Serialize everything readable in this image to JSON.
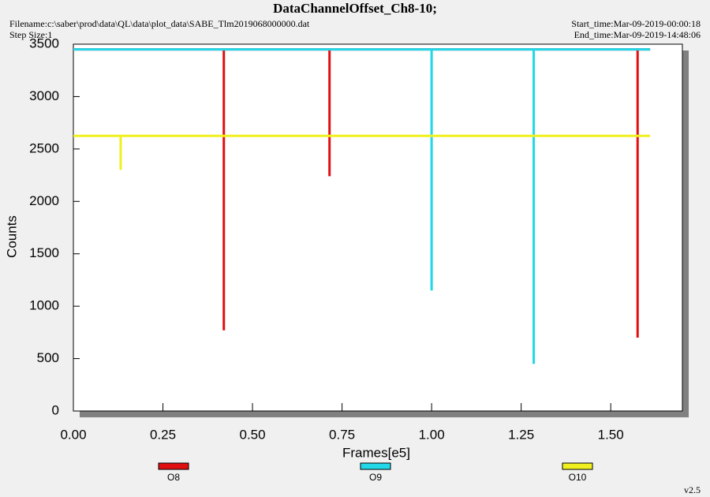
{
  "chart_data": {
    "type": "line",
    "title": "DataChannelOffset_Ch8-10;",
    "filename": "Filename:c:\\saber\\prod\\data\\QL\\data\\plot_data\\SABE_Tlm2019068000000.dat",
    "step_size": "Step Size:1",
    "start_time": "Start_time:Mar-09-2019-00:00:18",
    "end_time": "End_time:Mar-09-2019-14:48:06",
    "version": "v2.5",
    "xlabel": "Frames[e5]",
    "ylabel": "Counts",
    "xlim": [
      0,
      1.7
    ],
    "ylim": [
      0,
      3500
    ],
    "xticks": [
      {
        "value": 0,
        "label": "0.00"
      },
      {
        "value": 0.25,
        "label": "0.25"
      },
      {
        "value": 0.5,
        "label": "0.50"
      },
      {
        "value": 0.75,
        "label": "0.75"
      },
      {
        "value": 1,
        "label": "1.00"
      },
      {
        "value": 1.25,
        "label": "1.25"
      },
      {
        "value": 1.5,
        "label": "1.50"
      }
    ],
    "yticks": [
      0,
      500,
      1000,
      1500,
      2000,
      2500,
      3000,
      3500
    ],
    "grid": false,
    "series": [
      {
        "name": "O8",
        "color": "#e01010",
        "x": [
          0,
          0.42,
          0.42,
          0.42,
          0.715,
          0.715,
          0.715,
          1.575,
          1.575,
          1.575,
          1.61
        ],
        "values": [
          3450,
          3450,
          770,
          3450,
          3450,
          2240,
          3450,
          3450,
          700,
          3450,
          3450
        ]
      },
      {
        "name": "O9",
        "color": "#20d8e8",
        "x": [
          0,
          1.0,
          1.0,
          1.0,
          1.285,
          1.285,
          1.285,
          1.61
        ],
        "values": [
          3450,
          3450,
          1150,
          3450,
          3450,
          450,
          3450,
          3450
        ]
      },
      {
        "name": "O10",
        "color": "#f0f020",
        "x": [
          0,
          0.132,
          0.132,
          0.132,
          1.61
        ],
        "values": [
          2625,
          2625,
          2300,
          2625,
          2625
        ]
      }
    ]
  }
}
